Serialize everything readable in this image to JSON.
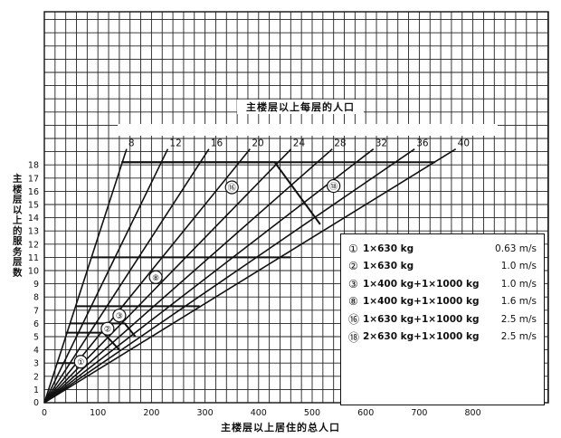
{
  "chart_data": {
    "type": "line",
    "title": "主楼层以上每层的人口",
    "xlabel": "主楼层以上居住的总人口",
    "ylabel": "主楼层以上的服务层数",
    "xlim": [
      0,
      800
    ],
    "ylim": [
      0,
      18
    ],
    "x_ticks": [
      "0",
      "100",
      "200",
      "300",
      "400",
      "500",
      "600",
      "700",
      "800"
    ],
    "y_ticks": [
      "1",
      "2",
      "3",
      "4",
      "5",
      "6",
      "7",
      "8",
      "9",
      "10",
      "11",
      "12",
      "13",
      "14",
      "15",
      "16",
      "17",
      "18"
    ],
    "grid": true,
    "ray_series": [
      {
        "name": "8",
        "slope": 8
      },
      {
        "name": "12",
        "slope": 12
      },
      {
        "name": "16",
        "slope": 16
      },
      {
        "name": "20",
        "slope": 20
      },
      {
        "name": "24",
        "slope": 24
      },
      {
        "name": "28",
        "slope": 28
      },
      {
        "name": "32",
        "slope": 32
      },
      {
        "name": "36",
        "slope": 36
      },
      {
        "name": "40",
        "slope": 40
      }
    ],
    "capacity_curves": [
      {
        "name": "①",
        "points": [
          [
            24,
            3
          ],
          [
            60,
            3
          ]
        ]
      },
      {
        "name": "②",
        "points": [
          [
            40,
            5.3
          ],
          [
            110,
            5.3
          ],
          [
            140,
            4
          ]
        ]
      },
      {
        "name": "③",
        "points": [
          [
            48,
            6
          ],
          [
            150,
            6
          ],
          [
            170,
            5
          ]
        ]
      },
      {
        "name": "⑧",
        "points": [
          [
            60,
            7.3
          ],
          [
            290,
            7.3
          ]
        ]
      },
      {
        "name": "⑧",
        "points": [
          [
            88,
            11
          ],
          [
            460,
            11
          ]
        ]
      },
      {
        "name": "⑯",
        "points": [
          [
            144,
            18.2
          ],
          [
            430,
            18.2
          ],
          [
            515,
            13.5
          ]
        ]
      },
      {
        "name": "⑱",
        "points": [
          [
            144,
            18.2
          ],
          [
            730,
            18.2
          ]
        ]
      }
    ],
    "curve_markers": [
      "①",
      "②",
      "③",
      "⑧",
      "⑯",
      "⑱"
    ]
  },
  "legend": {
    "items": [
      {
        "marker": "①",
        "label": "1×630 kg",
        "speed": "0.63 m/s"
      },
      {
        "marker": "②",
        "label": "1×630 kg",
        "speed": "1.0 m/s"
      },
      {
        "marker": "③",
        "label": "1×400 kg+1×1000 kg",
        "speed": "1.0 m/s"
      },
      {
        "marker": "⑧",
        "label": "1×400 kg+1×1000 kg",
        "speed": "1.6 m/s"
      },
      {
        "marker": "⑯",
        "label": "1×630 kg+1×1000 kg",
        "speed": "2.5 m/s"
      },
      {
        "marker": "⑱",
        "label": "2×630 kg+1×1000 kg",
        "speed": "2.5 m/s"
      }
    ]
  }
}
